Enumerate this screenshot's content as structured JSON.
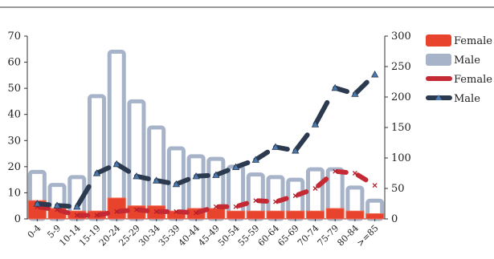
{
  "chart_data": {
    "type": "bar",
    "categories": [
      "0-4",
      "5-9",
      "10-14",
      "15-19",
      "20-24",
      "25-29",
      "30-34",
      "35-39",
      "40-44",
      "45-49",
      "50-54",
      "55-59",
      "60-64",
      "65-69",
      "70-74",
      "75-79",
      "80-84",
      ">=85"
    ],
    "series": [
      {
        "name": "Female",
        "type": "bar",
        "axis": "left",
        "color": "#e8432c",
        "values": [
          7,
          4,
          3,
          3,
          8,
          5,
          5,
          3,
          4,
          4,
          3,
          3,
          3,
          3,
          3,
          4,
          3,
          2
        ]
      },
      {
        "name": "Male",
        "type": "bar",
        "axis": "left",
        "color": "#a7b3c9",
        "values": [
          18,
          13,
          16,
          47,
          64,
          45,
          35,
          27,
          24,
          23,
          20,
          17,
          16,
          15,
          19,
          19,
          12,
          7
        ]
      },
      {
        "name": "Female",
        "type": "line",
        "axis": "right",
        "color": "#c52a34",
        "values": [
          20,
          15,
          6,
          6,
          12,
          15,
          12,
          12,
          10,
          20,
          20,
          30,
          28,
          38,
          50,
          78,
          75,
          55
        ]
      },
      {
        "name": "Male",
        "type": "line",
        "axis": "right",
        "color": "#2b3a4f",
        "values": [
          25,
          22,
          20,
          75,
          90,
          70,
          63,
          57,
          70,
          72,
          85,
          97,
          118,
          112,
          155,
          215,
          205,
          237
        ]
      }
    ],
    "left_axis": {
      "min": 0,
      "max": 70,
      "ticks": [
        "0",
        "10",
        "20",
        "30",
        "40",
        "50",
        "60",
        "70"
      ]
    },
    "right_axis": {
      "min": 0,
      "max": 300,
      "ticks": [
        "0",
        "50",
        "100",
        "150",
        "200",
        "250",
        "300"
      ]
    },
    "legend": {
      "position": "right",
      "items": [
        {
          "label": "Female",
          "kind": "bar",
          "color": "#e8432c"
        },
        {
          "label": "Male",
          "kind": "bar",
          "color": "#a7b3c9"
        },
        {
          "label": "Female",
          "kind": "line",
          "color": "#c52a34"
        },
        {
          "label": "Male",
          "kind": "line",
          "color": "#2b3a4f"
        }
      ]
    },
    "grid": false
  }
}
